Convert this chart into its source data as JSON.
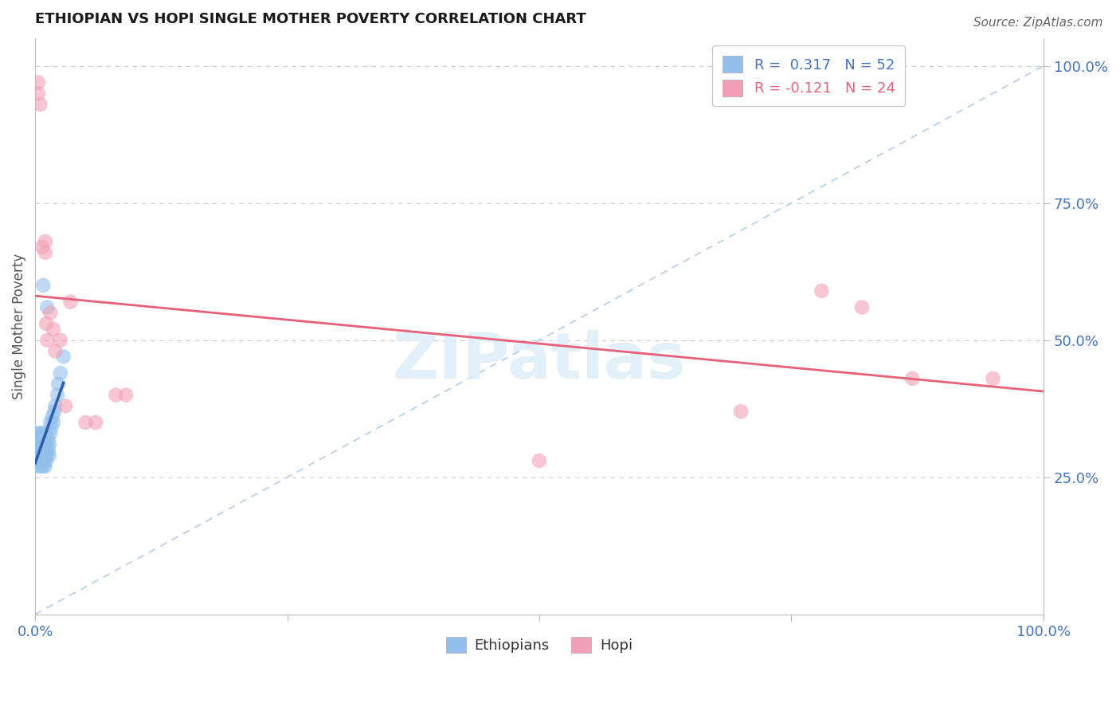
{
  "title": "ETHIOPIAN VS HOPI SINGLE MOTHER POVERTY CORRELATION CHART",
  "source": "Source: ZipAtlas.com",
  "ylabel": "Single Mother Poverty",
  "legend_label1": "Ethiopians",
  "legend_label2": "Hopi",
  "R1": 0.317,
  "N1": 52,
  "R2": -0.121,
  "N2": 24,
  "ethiopian_color": "#92c0eb",
  "hopi_color": "#f2a0b5",
  "regression_color_blue": "#2a5caa",
  "regression_color_pink": "#e8607a",
  "diag_color": "#b8d0ea",
  "watermark": "ZIPatlas",
  "background_color": "#ffffff",
  "grid_color": "#cccccc",
  "tick_color": "#4472c4",
  "spine_color": "#bbbbbb",
  "ethiopian_x": [
    0.001,
    0.002,
    0.002,
    0.003,
    0.003,
    0.003,
    0.004,
    0.004,
    0.004,
    0.005,
    0.005,
    0.005,
    0.005,
    0.006,
    0.006,
    0.006,
    0.007,
    0.007,
    0.007,
    0.007,
    0.008,
    0.008,
    0.008,
    0.008,
    0.009,
    0.009,
    0.009,
    0.01,
    0.01,
    0.01,
    0.01,
    0.011,
    0.011,
    0.012,
    0.012,
    0.013,
    0.013,
    0.014,
    0.014,
    0.015,
    0.015,
    0.016,
    0.017,
    0.018,
    0.019,
    0.02,
    0.022,
    0.023,
    0.025,
    0.028,
    0.012,
    0.008
  ],
  "ethiopian_y": [
    0.3,
    0.28,
    0.32,
    0.27,
    0.31,
    0.33,
    0.29,
    0.3,
    0.32,
    0.28,
    0.29,
    0.31,
    0.33,
    0.27,
    0.3,
    0.32,
    0.28,
    0.3,
    0.31,
    0.33,
    0.27,
    0.29,
    0.31,
    0.32,
    0.28,
    0.3,
    0.32,
    0.27,
    0.29,
    0.31,
    0.33,
    0.28,
    0.3,
    0.29,
    0.31,
    0.3,
    0.32,
    0.29,
    0.31,
    0.33,
    0.35,
    0.34,
    0.36,
    0.35,
    0.37,
    0.38,
    0.4,
    0.42,
    0.44,
    0.47,
    0.56,
    0.6
  ],
  "hopi_x": [
    0.003,
    0.003,
    0.005,
    0.007,
    0.01,
    0.01,
    0.011,
    0.012,
    0.015,
    0.018,
    0.02,
    0.025,
    0.03,
    0.035,
    0.05,
    0.06,
    0.08,
    0.09,
    0.5,
    0.7,
    0.78,
    0.82,
    0.87,
    0.95
  ],
  "hopi_y": [
    0.95,
    0.97,
    0.93,
    0.67,
    0.68,
    0.66,
    0.53,
    0.5,
    0.55,
    0.52,
    0.48,
    0.5,
    0.38,
    0.57,
    0.35,
    0.35,
    0.4,
    0.4,
    0.28,
    0.37,
    0.59,
    0.56,
    0.43,
    0.43
  ],
  "xlim": [
    0.0,
    1.0
  ],
  "ylim": [
    0.0,
    1.05
  ],
  "yticks": [
    0.25,
    0.5,
    0.75,
    1.0
  ],
  "xticks": [
    0.0,
    0.25,
    0.5,
    0.75,
    1.0
  ]
}
